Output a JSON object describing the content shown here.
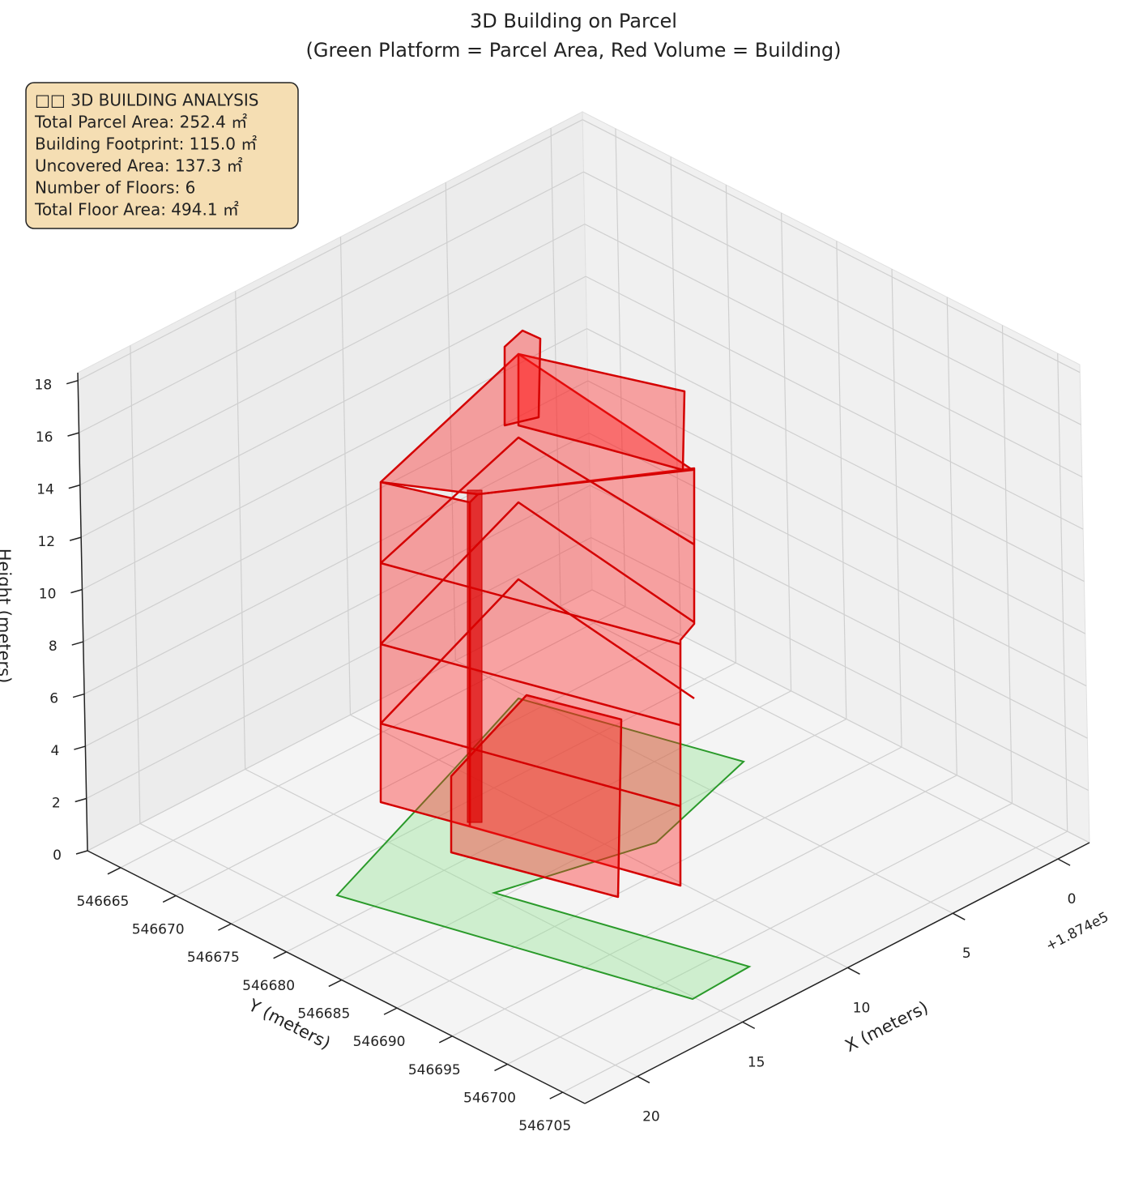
{
  "chart_data": {
    "type": "bar3d",
    "title": "3D Building on Parcel",
    "subtitle": "(Green Platform = Parcel Area, Red Volume = Building)",
    "xlabel": "X (meters)",
    "ylabel": "Y (meters)",
    "zlabel": "Height (meters)",
    "x_offset_label": "+1.874e5",
    "xlim": [
      -1.5,
      22.5
    ],
    "xticks": [
      0,
      5,
      10,
      15,
      20
    ],
    "ylim": [
      546662,
      546707
    ],
    "yticks": [
      546665,
      546670,
      546675,
      546680,
      546685,
      546690,
      546695,
      546700,
      546705
    ],
    "zlim": [
      0,
      18.3
    ],
    "zticks": [
      0,
      2,
      4,
      6,
      8,
      10,
      12,
      14,
      16,
      18
    ],
    "grid": true,
    "info_box": [
      "□□ 3D BUILDING ANALYSIS",
      "Total Parcel Area: 252.4 ㎡",
      "Building Footprint: 115.0 ㎡",
      "Uncovered Area: 137.3 ㎡",
      "Number of Floors: 6",
      "Total Floor Area: 494.1 ㎡"
    ]
  }
}
